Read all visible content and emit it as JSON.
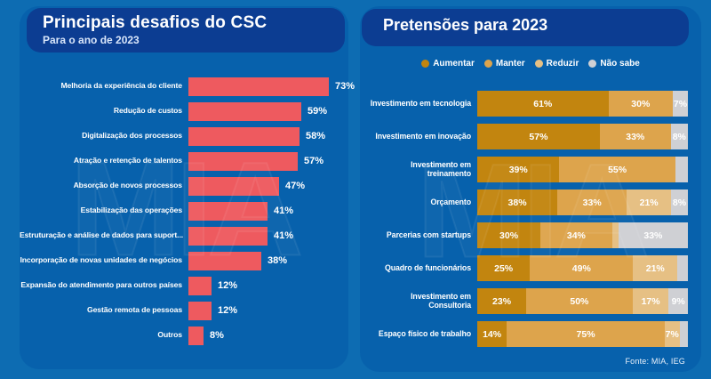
{
  "colors": {
    "background": "#0d6cb2",
    "panel": "#0761ac",
    "header_pill": "#0c3d92",
    "bar_red": "#ee5a5f",
    "aumentar": "#c2850f",
    "manter": "#dda44c",
    "reduzir": "#e6c084",
    "nao_sabe": "#cfd0d4"
  },
  "left_panel": {
    "title": "Principais desafios do CSC",
    "subtitle": "Para o ano de 2023",
    "watermark": "MIA"
  },
  "right_panel": {
    "title": "Pretensões para 2023",
    "legend": [
      {
        "label": "Aumentar",
        "key": "aumentar"
      },
      {
        "label": "Manter",
        "key": "manter"
      },
      {
        "label": "Reduzir",
        "key": "reduzir"
      },
      {
        "label": "Não sabe",
        "key": "nao_sabe"
      }
    ],
    "source": "Fonte: MIA, IEG",
    "watermark": "MIA"
  },
  "chart_data": [
    {
      "type": "bar",
      "orientation": "horizontal",
      "title": "Principais desafios do CSC",
      "subtitle": "Para o ano de 2023",
      "value_suffix": "%",
      "xlim": [
        0,
        100
      ],
      "categories": [
        "Melhoria da experiência do cliente",
        "Redução de custos",
        "Digitalização dos processos",
        "Atração e retenção de talentos",
        "Absorção de novos processos",
        "Estabilização das operações",
        "Estruturação e análise de dados para suport...",
        "Incorporação de novas unidades de negócios",
        "Expansão do atendimento para outros países",
        "Gestão remota de pessoas",
        "Outros"
      ],
      "values": [
        73,
        59,
        58,
        57,
        47,
        41,
        41,
        38,
        12,
        12,
        8
      ]
    },
    {
      "type": "bar",
      "orientation": "horizontal",
      "stacked": true,
      "title": "Pretensões para 2023",
      "series_names": [
        "Aumentar",
        "Manter",
        "Reduzir",
        "Não sabe"
      ],
      "rows": [
        {
          "label": "Investimento em tecnologia",
          "segments": [
            {
              "series": "Aumentar",
              "key": "aumentar",
              "value": 61,
              "text": "61%"
            },
            {
              "series": "Manter",
              "key": "manter",
              "value": 30,
              "text": "30%"
            },
            {
              "series": "Não sabe",
              "key": "nao_sabe",
              "value": 7,
              "text": "7%"
            }
          ]
        },
        {
          "label": "Investimento em inovação",
          "segments": [
            {
              "series": "Aumentar",
              "key": "aumentar",
              "value": 57,
              "text": "57%"
            },
            {
              "series": "Manter",
              "key": "manter",
              "value": 33,
              "text": "33%"
            },
            {
              "series": "Não sabe",
              "key": "nao_sabe",
              "value": 8,
              "text": "8%"
            }
          ]
        },
        {
          "label": "Investimento em treinamento",
          "segments": [
            {
              "series": "Aumentar",
              "key": "aumentar",
              "value": 39,
              "text": "39%"
            },
            {
              "series": "Manter",
              "key": "manter",
              "value": 55,
              "text": "55%"
            },
            {
              "series": "Não sabe",
              "key": "nao_sabe",
              "value": 6,
              "text": ""
            }
          ]
        },
        {
          "label": "Orçamento",
          "segments": [
            {
              "series": "Aumentar",
              "key": "aumentar",
              "value": 38,
              "text": "38%"
            },
            {
              "series": "Manter",
              "key": "manter",
              "value": 33,
              "text": "33%"
            },
            {
              "series": "Reduzir",
              "key": "reduzir",
              "value": 21,
              "text": "21%"
            },
            {
              "series": "Não sabe",
              "key": "nao_sabe",
              "value": 8,
              "text": "8%"
            }
          ]
        },
        {
          "label": "Parcerias com startups",
          "segments": [
            {
              "series": "Aumentar",
              "key": "aumentar",
              "value": 30,
              "text": "30%"
            },
            {
              "series": "Manter",
              "key": "manter",
              "value": 34,
              "text": "34%"
            },
            {
              "series": "Reduzir",
              "key": "reduzir",
              "value": 3,
              "text": ""
            },
            {
              "series": "Não sabe",
              "key": "nao_sabe",
              "value": 33,
              "text": "33%"
            }
          ]
        },
        {
          "label": "Quadro de funcionários",
          "segments": [
            {
              "series": "Aumentar",
              "key": "aumentar",
              "value": 25,
              "text": "25%"
            },
            {
              "series": "Manter",
              "key": "manter",
              "value": 49,
              "text": "49%"
            },
            {
              "series": "Reduzir",
              "key": "reduzir",
              "value": 21,
              "text": "21%"
            },
            {
              "series": "Não sabe",
              "key": "nao_sabe",
              "value": 5,
              "text": ""
            }
          ]
        },
        {
          "label": "Investimento em Consultoria",
          "segments": [
            {
              "series": "Aumentar",
              "key": "aumentar",
              "value": 23,
              "text": "23%"
            },
            {
              "series": "Manter",
              "key": "manter",
              "value": 50,
              "text": "50%"
            },
            {
              "series": "Reduzir",
              "key": "reduzir",
              "value": 17,
              "text": "17%"
            },
            {
              "series": "Não sabe",
              "key": "nao_sabe",
              "value": 9,
              "text": "9%"
            }
          ]
        },
        {
          "label": "Espaço físico de trabalho",
          "segments": [
            {
              "series": "Aumentar",
              "key": "aumentar",
              "value": 14,
              "text": "14%"
            },
            {
              "series": "Manter",
              "key": "manter",
              "value": 75,
              "text": "75%"
            },
            {
              "series": "Reduzir",
              "key": "reduzir",
              "value": 7,
              "text": "7%"
            },
            {
              "series": "Não sabe",
              "key": "nao_sabe",
              "value": 4,
              "text": ""
            }
          ]
        }
      ],
      "legend_position": "top"
    }
  ]
}
